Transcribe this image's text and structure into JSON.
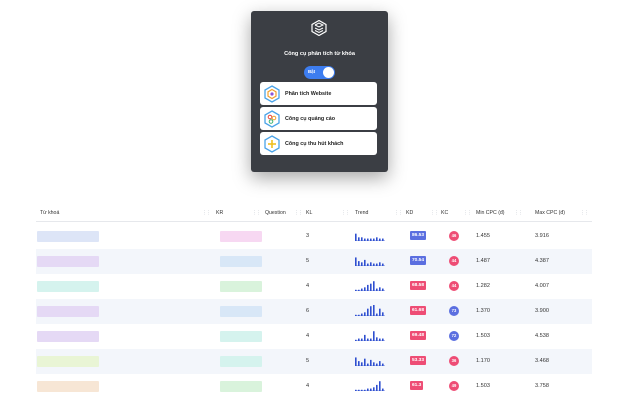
{
  "popup": {
    "title": "Công cụ phân tích từ khóa",
    "toggle_label": "Bật",
    "menu": [
      {
        "label": "Phân tích Website",
        "icon": "website-analysis-icon"
      },
      {
        "label": "Công cụ quảng cáo",
        "icon": "ads-tool-icon"
      },
      {
        "label": "Công cụ thu hút khách",
        "icon": "attract-customers-icon"
      }
    ]
  },
  "table": {
    "headers": {
      "keyword": "Từ khoá",
      "kr": "KR",
      "question": "Question",
      "kl": "KL",
      "trend": "Trend",
      "kd": "KD",
      "kc": "KC",
      "min_cpc": "Min CPC (đ)",
      "max_cpc": "Max CPC (đ)"
    },
    "rows": [
      {
        "kw_color": "#dde5f7",
        "kr_color": "#f7d8f2",
        "kl": "3",
        "trend": [
          6,
          3,
          3,
          2,
          2,
          2,
          2,
          3,
          2,
          2
        ],
        "kd": "86.53",
        "kd_color": "#5b6fe0",
        "kc": "46",
        "kc_color": "#ee4d75",
        "min_cpc": "1.455",
        "max_cpc": "3.916"
      },
      {
        "kw_color": "#e5d9f5",
        "kr_color": "#d8e7f7",
        "kl": "5",
        "trend": [
          7,
          4,
          3,
          5,
          2,
          3,
          2,
          2,
          3,
          2
        ],
        "kd": "70.54",
        "kd_color": "#5b6fe0",
        "kc": "44",
        "kc_color": "#ee4d75",
        "min_cpc": "1.487",
        "max_cpc": "4.387"
      },
      {
        "kw_color": "#d5f3ee",
        "kr_color": "#d9f3dc",
        "kl": "4",
        "trend": [
          1,
          1,
          2,
          3,
          5,
          6,
          8,
          2,
          3,
          2
        ],
        "kd": "68.58",
        "kd_color": "#ee4d75",
        "kc": "44",
        "kc_color": "#ee4d75",
        "min_cpc": "1.282",
        "max_cpc": "4.007"
      },
      {
        "kw_color": "#e5d9f5",
        "kr_color": "#d8e7f7",
        "kl": "6",
        "trend": [
          1,
          1,
          2,
          3,
          6,
          8,
          9,
          2,
          6,
          3
        ],
        "kd": "61.68",
        "kd_color": "#ee4d75",
        "kc": "73",
        "kc_color": "#5b6fe0",
        "min_cpc": "1.370",
        "max_cpc": "3.900"
      },
      {
        "kw_color": "#e5d9f5",
        "kr_color": "#d5f3ee",
        "kl": "4",
        "trend": [
          1,
          2,
          2,
          5,
          2,
          2,
          8,
          3,
          2,
          2
        ],
        "kd": "69.48",
        "kd_color": "#ee4d75",
        "kc": "72",
        "kc_color": "#5b6fe0",
        "min_cpc": "1.503",
        "max_cpc": "4.538"
      },
      {
        "kw_color": "#e9f5d5",
        "kr_color": "#d5f3ee",
        "kl": "5",
        "trend": [
          7,
          4,
          3,
          6,
          2,
          5,
          3,
          2,
          4,
          2
        ],
        "kd": "53.33",
        "kd_color": "#ee4d75",
        "kc": "36",
        "kc_color": "#ee4d75",
        "min_cpc": "1.170",
        "max_cpc": "3.468"
      },
      {
        "kw_color": "#f7e6d5",
        "kr_color": "#d9f3dc",
        "kl": "4",
        "trend": [
          1,
          1,
          1,
          1,
          2,
          2,
          3,
          5,
          8,
          2
        ],
        "kd": "61.3",
        "kd_color": "#ee4d75",
        "kc": "49",
        "kc_color": "#ee4d75",
        "min_cpc": "1.503",
        "max_cpc": "3.758"
      }
    ]
  },
  "colors": {
    "accent": "#3d7df0",
    "trend": "#2f4fd0",
    "popup_bg": "#3b3e44"
  }
}
